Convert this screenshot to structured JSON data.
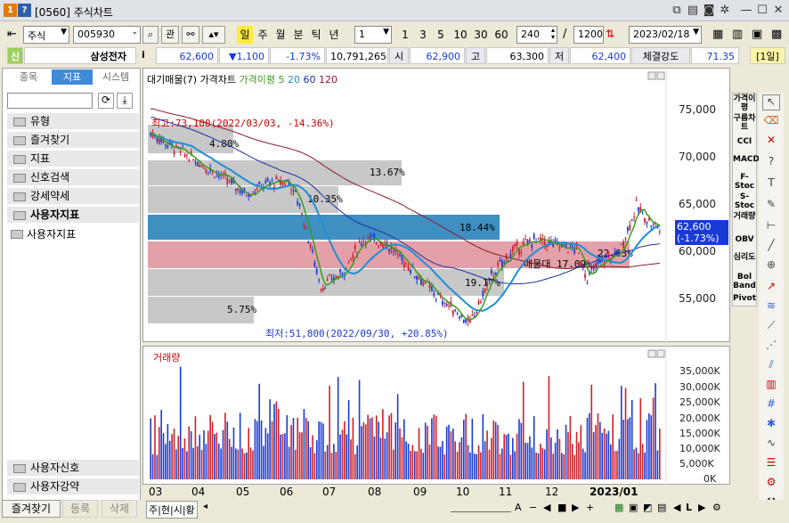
{
  "window": {
    "number": "1",
    "help": "?",
    "title": "[0560] 주식차트"
  },
  "toolbar": {
    "market": "주식",
    "code": "005930",
    "btn_kwan": "관",
    "periods": [
      "일",
      "주",
      "월",
      "분",
      "틱",
      "년"
    ],
    "period_count": "1",
    "nums": [
      "1",
      "3",
      "5",
      "10",
      "30",
      "60"
    ],
    "bars": "240",
    "slash": "/",
    "total": "1200",
    "date": "2023/02/18"
  },
  "quote": {
    "badge": "신",
    "name": "삼성전자",
    "info": "i",
    "price": "62,600",
    "change": "▼1,100",
    "pct": "-1.73%",
    "volume": "10,791,265",
    "open_label": "시",
    "open": "62,900",
    "high_label": "고",
    "high": "63,300",
    "low_label": "저",
    "low": "62,400",
    "strength_label": "체결강도",
    "strength": "71.35",
    "period": "[1일]"
  },
  "left": {
    "tabs": [
      "종목",
      "지표",
      "시스템"
    ],
    "items": [
      "유형",
      "즐겨찾기",
      "지표",
      "신호검색",
      "강세약세",
      "사용자지표"
    ],
    "sub": "사용자지표",
    "bottom_items": [
      "사용자신호",
      "사용자강약"
    ]
  },
  "chart": {
    "legend": [
      "대기매물(7)",
      "가격차트",
      "가격이평 5",
      "20",
      "60",
      "120"
    ],
    "legend_colors": [
      "#000",
      "#000",
      "#3a9a1e",
      "#1e8fd6",
      "#1c2f9e",
      "#8a1a2a"
    ],
    "max_label": "최고:73,100(2022/03/03, -14.36%)",
    "min_label": "최저:51,800(2022/09/30, +20.85%)",
    "bands": [
      {
        "label": "4.80%"
      },
      {
        "label": "13.67%"
      },
      {
        "label": "10.35%"
      },
      {
        "label": "18.44%"
      },
      {
        "label": "22.63%"
      },
      {
        "label": "19.17%"
      },
      {
        "label": "5.75%"
      }
    ],
    "bands_overlay": "매물대 17.09%",
    "yaxis": [
      "75,000",
      "70,000",
      "65,000",
      "60,000",
      "55,000"
    ],
    "last_price": "62,600",
    "last_pct": "(-1.73%)"
  },
  "volume": {
    "title": "거래량",
    "yaxis": [
      "35,000K",
      "30,000K",
      "25,000K",
      "20,000K",
      "15,000K",
      "10,000K",
      "5,000K",
      "0K"
    ]
  },
  "xaxis": [
    "03",
    "04",
    "05",
    "06",
    "07",
    "08",
    "09",
    "10",
    "11",
    "12",
    "2023/01"
  ],
  "rightbar": [
    "가격이평",
    "구름차트",
    "CCI",
    "MACD",
    "F-Stoc",
    "S-Stoc",
    "거래량",
    "OBV",
    "심리도",
    "Bol Band",
    "Pivot"
  ],
  "bottom": {
    "fav": "즐겨찾기",
    "add": "등록",
    "del": "삭제",
    "modes": [
      "주",
      "현",
      "시",
      "황"
    ]
  }
}
